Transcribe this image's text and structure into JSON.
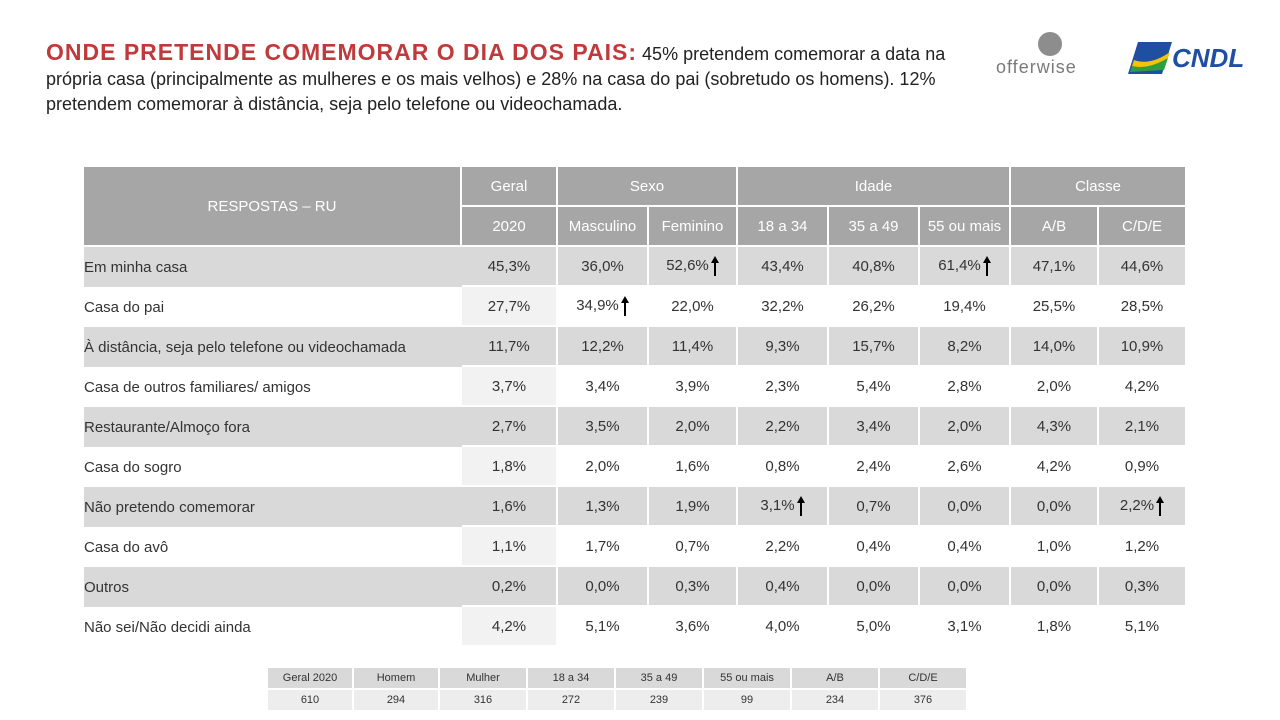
{
  "header": {
    "title_lead": "ONDE PRETENDE COMEMORAR O DIA DOS PAIS:",
    "title_rest": " 45% pretendem comemorar a data na própria casa (principalmente as mulheres e os mais velhos) e 28% na casa do pai (sobretudo os homens). 12% pretendem comemorar à distância, seja pelo telefone ou videochamada.",
    "logo_offerwise": "offerwise",
    "logo_cndl": "CNDL"
  },
  "table": {
    "corner_label": "RESPOSTAS – RU",
    "groups": {
      "geral": "Geral",
      "sexo": "Sexo",
      "idade": "Idade",
      "classe": "Classe"
    },
    "columns": [
      "2020",
      "Masculino",
      "Feminino",
      "18 a 34",
      "35 a 49",
      "55 ou mais",
      "A/B",
      "C/D/E"
    ],
    "rows": [
      {
        "label": "Em minha casa",
        "values": [
          "45,3%",
          "36,0%",
          "52,6%",
          "43,4%",
          "40,8%",
          "61,4%",
          "47,1%",
          "44,6%"
        ],
        "up": [
          2,
          5
        ]
      },
      {
        "label": "Casa do pai",
        "values": [
          "27,7%",
          "34,9%",
          "22,0%",
          "32,2%",
          "26,2%",
          "19,4%",
          "25,5%",
          "28,5%"
        ],
        "up": [
          1
        ]
      },
      {
        "label": "À distância, seja pelo telefone ou videochamada",
        "values": [
          "11,7%",
          "12,2%",
          "11,4%",
          "9,3%",
          "15,7%",
          "8,2%",
          "14,0%",
          "10,9%"
        ],
        "up": []
      },
      {
        "label": "Casa de outros familiares/ amigos",
        "values": [
          "3,7%",
          "3,4%",
          "3,9%",
          "2,3%",
          "5,4%",
          "2,8%",
          "2,0%",
          "4,2%"
        ],
        "up": []
      },
      {
        "label": "Restaurante/Almoço fora",
        "values": [
          "2,7%",
          "3,5%",
          "2,0%",
          "2,2%",
          "3,4%",
          "2,0%",
          "4,3%",
          "2,1%"
        ],
        "up": []
      },
      {
        "label": "Casa do sogro",
        "values": [
          "1,8%",
          "2,0%",
          "1,6%",
          "0,8%",
          "2,4%",
          "2,6%",
          "4,2%",
          "0,9%"
        ],
        "up": []
      },
      {
        "label": "Não pretendo comemorar",
        "values": [
          "1,6%",
          "1,3%",
          "1,9%",
          "3,1%",
          "0,7%",
          "0,0%",
          "0,0%",
          "2,2%"
        ],
        "up": [
          3,
          7
        ]
      },
      {
        "label": "Casa do avô",
        "values": [
          "1,1%",
          "1,7%",
          "0,7%",
          "2,2%",
          "0,4%",
          "0,4%",
          "1,0%",
          "1,2%"
        ],
        "up": []
      },
      {
        "label": "Outros",
        "values": [
          "0,2%",
          "0,0%",
          "0,3%",
          "0,4%",
          "0,0%",
          "0,0%",
          "0,0%",
          "0,3%"
        ],
        "up": []
      },
      {
        "label": "Não sei/Não decidi ainda",
        "values": [
          "4,2%",
          "5,1%",
          "3,6%",
          "4,0%",
          "5,0%",
          "3,1%",
          "1,8%",
          "5,1%"
        ],
        "up": []
      }
    ]
  },
  "base": {
    "headers": [
      "Geral 2020",
      "Homem",
      "Mulher",
      "18 a 34",
      "35 a 49",
      "55 ou mais",
      "A/B",
      "C/D/E"
    ],
    "values": [
      "610",
      "294",
      "316",
      "272",
      "239",
      "99",
      "234",
      "376"
    ]
  },
  "colors": {
    "title_accent": "#c0393b",
    "header_gray": "#a6a6a6",
    "row_alt": "#d9d9d9",
    "arrow": "#000000"
  }
}
